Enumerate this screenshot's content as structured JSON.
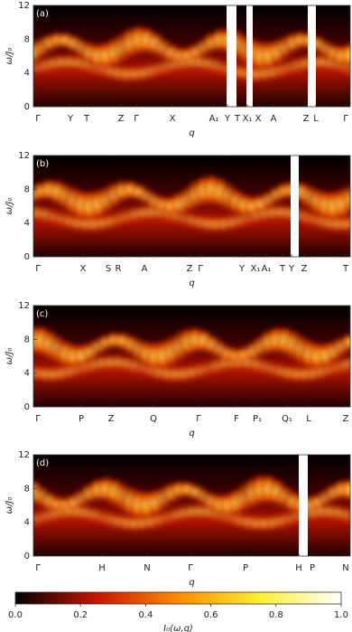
{
  "chart_data": [
    {
      "type": "heatmap",
      "panel_label": "(a)",
      "ylabel": "ω/J₀",
      "xlabel": "q",
      "categories": [
        "Γ",
        "Y",
        "T",
        "Z",
        "Γ",
        "X",
        "A₁",
        "Y",
        "T",
        "X₁",
        "X",
        "A",
        "Z",
        "L",
        "Γ"
      ],
      "ylim": [
        0,
        12
      ],
      "yticks": [
        0,
        4,
        8,
        12
      ]
    },
    {
      "type": "heatmap",
      "panel_label": "(b)",
      "ylabel": "ω/J₀",
      "xlabel": "q",
      "categories": [
        "Γ",
        "X",
        "S",
        "R",
        "A",
        "Z",
        "Γ",
        "Y",
        "X₁",
        "A₁",
        "T",
        "Y",
        "Z",
        "T"
      ],
      "ylim": [
        0,
        12
      ],
      "yticks": [
        0,
        4,
        8,
        12
      ]
    },
    {
      "type": "heatmap",
      "panel_label": "(c)",
      "ylabel": "ω/J₀",
      "xlabel": "q",
      "categories": [
        "Γ",
        "P",
        "Z",
        "Q",
        "Γ",
        "F",
        "P₁",
        "Q₁",
        "L",
        "Z"
      ],
      "ylim": [
        0,
        12
      ],
      "yticks": [
        0,
        4,
        8,
        12
      ]
    },
    {
      "type": "heatmap",
      "panel_label": "(d)",
      "ylabel": "ω/J₀",
      "xlabel": "q",
      "categories": [
        "Γ",
        "H",
        "N",
        "Γ",
        "P",
        "H",
        "P",
        "N"
      ],
      "ylim": [
        0,
        12
      ],
      "yticks": [
        0,
        4,
        8,
        12
      ]
    },
    {
      "type": "colorbar",
      "xlabel": "I₀(ω,q)",
      "xlim": [
        0,
        1
      ],
      "xticks": [
        {
          "value": 0,
          "label": "0.0"
        },
        {
          "value": 0.2,
          "label": "0.2"
        },
        {
          "value": 0.4,
          "label": "0.4"
        },
        {
          "value": 0.6,
          "label": "0.6"
        },
        {
          "value": 0.8,
          "label": "0.8"
        },
        {
          "value": 1,
          "label": "1.0"
        }
      ]
    }
  ]
}
